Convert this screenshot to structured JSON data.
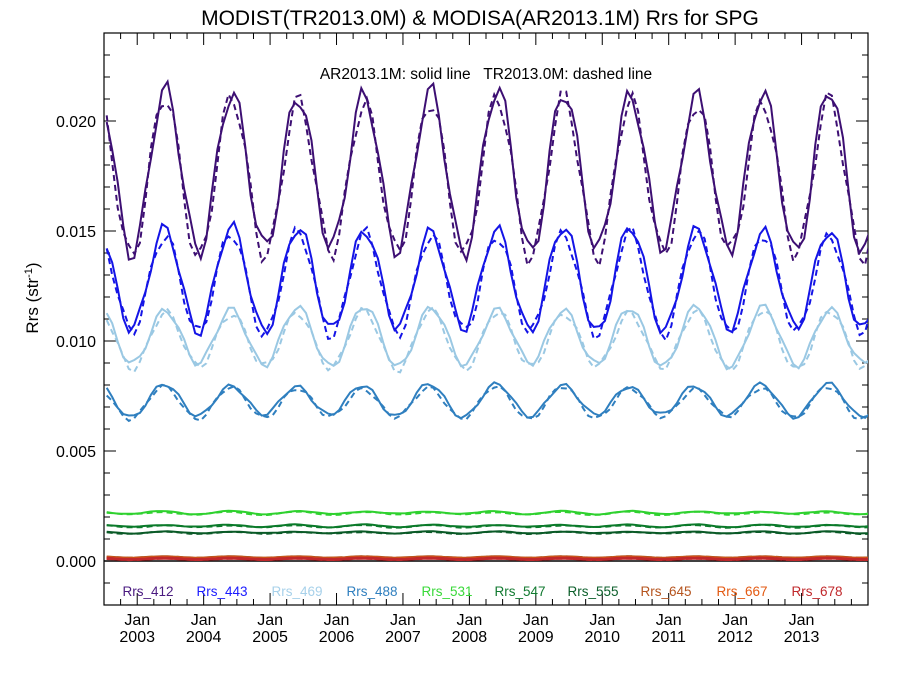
{
  "chart_data": {
    "type": "line",
    "title": "MODIST(TR2013.0M) & MODISA(AR2013.1M)  Rrs for SPG",
    "annotation": "AR2013.1M: solid line   TR2013.0M: dashed line",
    "ylabel_main": "Rrs (str",
    "ylabel_sup": "-1",
    "ylabel_close": ")",
    "xlim": [
      2002.5,
      2014.0
    ],
    "ylim": [
      -0.002,
      0.024
    ],
    "y_ticks": [
      0.0,
      0.005,
      0.01,
      0.015,
      0.02
    ],
    "y_tick_labels": [
      "0.000",
      "0.005",
      "0.010",
      "0.015",
      "0.020"
    ],
    "x_ticks": [
      2003,
      2004,
      2005,
      2006,
      2007,
      2008,
      2009,
      2010,
      2011,
      2012,
      2013
    ],
    "x_tick_labels_top": [
      "Jan",
      "Jan",
      "Jan",
      "Jan",
      "Jan",
      "Jan",
      "Jan",
      "Jan",
      "Jan",
      "Jan",
      "Jan"
    ],
    "x_tick_labels_bottom": [
      "2003",
      "2004",
      "2005",
      "2006",
      "2007",
      "2008",
      "2009",
      "2010",
      "2011",
      "2012",
      "2013"
    ],
    "legend_placement": "bottom, inside plot, single row",
    "zero_line": true,
    "series": [
      {
        "name": "Rrs_412",
        "color": "#3d0f73",
        "legend_color": "#4a1a80",
        "mean": 0.0177,
        "amp": 0.0036,
        "phase": 0.42
      },
      {
        "name": "Rrs_443",
        "color": "#1414e6",
        "legend_color": "#1a1aff",
        "mean": 0.0128,
        "amp": 0.0023,
        "phase": 0.42
      },
      {
        "name": "Rrs_469",
        "color": "#9ac8e3",
        "legend_color": "#a7d1ea",
        "mean": 0.0102,
        "amp": 0.0013,
        "phase": 0.42
      },
      {
        "name": "Rrs_488",
        "color": "#2f7fbf",
        "legend_color": "#2f7fbf",
        "mean": 0.0073,
        "amp": 0.0007,
        "phase": 0.4
      },
      {
        "name": "Rrs_531",
        "color": "#2fd12f",
        "legend_color": "#39d939",
        "mean": 0.0022,
        "amp": 6e-05,
        "phase": 0.4
      },
      {
        "name": "Rrs_547",
        "color": "#0b7a2a",
        "legend_color": "#127a31",
        "mean": 0.0016,
        "amp": 5e-05,
        "phase": 0.4
      },
      {
        "name": "Rrs_555",
        "color": "#0a5a27",
        "legend_color": "#0c5f2b",
        "mean": 0.0013,
        "amp": 4e-05,
        "phase": 0.4
      },
      {
        "name": "Rrs_645",
        "color": "#b5541e",
        "legend_color": "#b5541e",
        "mean": 0.00016,
        "amp": 3e-05,
        "phase": 0.4
      },
      {
        "name": "Rrs_667",
        "color": "#e35a12",
        "legend_color": "#e35a12",
        "mean": 0.00012,
        "amp": 3e-05,
        "phase": 0.4
      },
      {
        "name": "Rrs_678",
        "color": "#c0282b",
        "legend_color": "#c0282b",
        "mean": 0.0001,
        "amp": 3e-05,
        "phase": 0.4
      }
    ]
  }
}
